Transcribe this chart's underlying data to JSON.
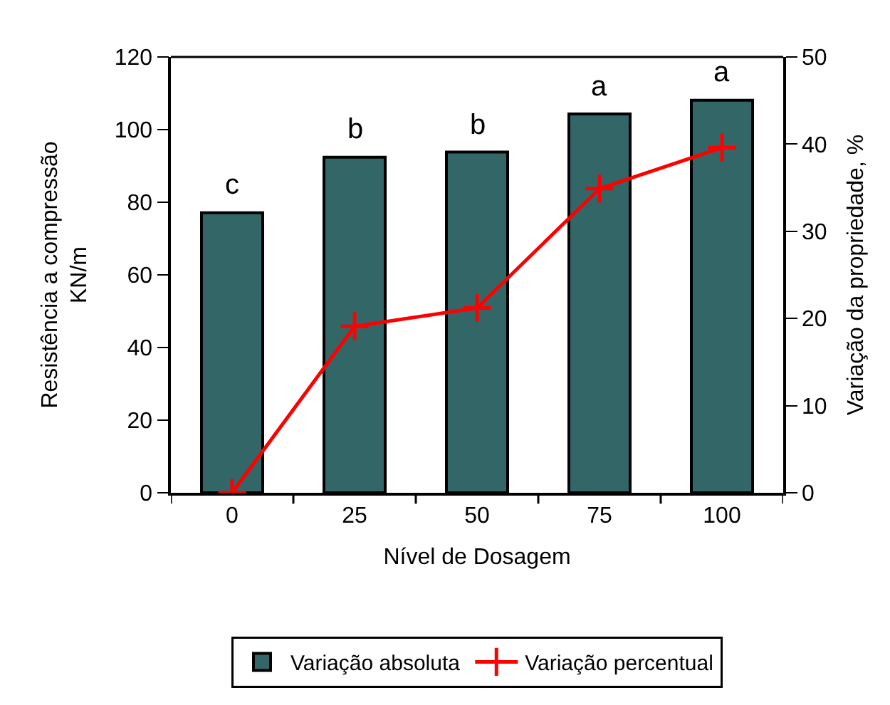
{
  "chart_data": {
    "type": "bar",
    "xlabel": "Nível de Dosagem",
    "ylabel": "Resistência a compressão\nKN/m",
    "y2label": "Variação da propriedade, %",
    "categories": [
      "0",
      "25",
      "50",
      "75",
      "100"
    ],
    "series": [
      {
        "name": "Variação absoluta",
        "color": "#336666",
        "values": [
          77.1,
          92.4,
          93.8,
          104.3,
          108.1
        ]
      },
      {
        "name": "Variação percentual",
        "type": "line",
        "axis": "y2",
        "color": "#ff0000",
        "marker": "cross",
        "values": [
          0,
          19.1,
          21.2,
          34.9,
          39.6
        ]
      }
    ],
    "annotations": [
      "c",
      "b",
      "b",
      "a",
      "a"
    ],
    "ylim": [
      0,
      120
    ],
    "yticks": [
      0,
      20,
      40,
      60,
      80,
      100,
      120
    ],
    "y2lim": [
      0,
      50
    ],
    "y2ticks": [
      0,
      10,
      20,
      30,
      40,
      50
    ],
    "legend": "bottom"
  }
}
